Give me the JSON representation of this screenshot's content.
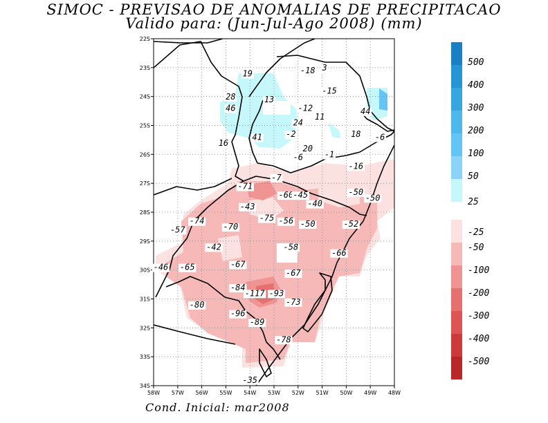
{
  "title_line1": "SIMOC - PREVISAO DE ANOMALIAS DE PRECIPITACAO",
  "title_line2": "Valido para: (Jun-Jul-Ago 2008) (mm)",
  "footer": "Cond. Inicial: mar2008",
  "map": {
    "lat_range": [
      -34,
      -22
    ],
    "lon_range": [
      -58,
      -48
    ],
    "lat_ticks": [
      "22S",
      "23S",
      "24S",
      "25S",
      "26S",
      "27S",
      "28S",
      "29S",
      "30S",
      "31S",
      "32S",
      "33S",
      "34S"
    ],
    "lon_ticks": [
      "58W",
      "57W",
      "56W",
      "55W",
      "54W",
      "53W",
      "52W",
      "51W",
      "50W",
      "49W",
      "48W"
    ],
    "gridlines": "dotted"
  },
  "colorbar": {
    "positive": [
      {
        "label": "500",
        "color": "#1a7fc4"
      },
      {
        "label": "400",
        "color": "#2794d4"
      },
      {
        "label": "300",
        "color": "#36a6df"
      },
      {
        "label": "200",
        "color": "#4cb8ec"
      },
      {
        "label": "100",
        "color": "#64c5f5"
      },
      {
        "label": "50",
        "color": "#8cd3f9"
      },
      {
        "label": "25",
        "color": "#c5f7fb"
      }
    ],
    "negative": [
      {
        "label": "-25",
        "color": "#fce1e1"
      },
      {
        "label": "-50",
        "color": "#f7b8b8"
      },
      {
        "label": "-100",
        "color": "#ef9393"
      },
      {
        "label": "-200",
        "color": "#e67070"
      },
      {
        "label": "-300",
        "color": "#dc5454"
      },
      {
        "label": "-400",
        "color": "#cc3a3a"
      },
      {
        "label": "-500",
        "color": "#b82828"
      }
    ]
  },
  "annotations": [
    {
      "text": "19",
      "lat": -23.3,
      "lon": -54.1
    },
    {
      "text": "-18",
      "lat": -23.2,
      "lon": -51.6
    },
    {
      "text": "3",
      "lat": -23.1,
      "lon": -50.9
    },
    {
      "text": "-15",
      "lat": -23.9,
      "lon": -50.7
    },
    {
      "text": "28",
      "lat": -24.1,
      "lon": -54.8
    },
    {
      "text": "13",
      "lat": -24.2,
      "lon": -53.2
    },
    {
      "text": "46",
      "lat": -24.5,
      "lon": -54.8
    },
    {
      "text": "-12",
      "lat": -24.5,
      "lon": -51.7
    },
    {
      "text": "44",
      "lat": -24.6,
      "lon": -49.2
    },
    {
      "text": "11",
      "lat": -24.8,
      "lon": -51.1
    },
    {
      "text": "24",
      "lat": -25.0,
      "lon": -52.0
    },
    {
      "text": "18",
      "lat": -25.4,
      "lon": -49.6
    },
    {
      "text": "-6",
      "lat": -25.5,
      "lon": -48.6
    },
    {
      "text": "-2",
      "lat": -25.4,
      "lon": -52.3
    },
    {
      "text": "41",
      "lat": -25.5,
      "lon": -53.7
    },
    {
      "text": "16",
      "lat": -25.7,
      "lon": -55.1
    },
    {
      "text": "20",
      "lat": -25.9,
      "lon": -51.6
    },
    {
      "text": "-1",
      "lat": -26.1,
      "lon": -50.7
    },
    {
      "text": "-6",
      "lat": -26.2,
      "lon": -52.0
    },
    {
      "text": "-16",
      "lat": -26.5,
      "lon": -49.6
    },
    {
      "text": "-7",
      "lat": -26.9,
      "lon": -52.9
    },
    {
      "text": "-71",
      "lat": -27.2,
      "lon": -54.2
    },
    {
      "text": "-60",
      "lat": -27.5,
      "lon": -52.5
    },
    {
      "text": "-45",
      "lat": -27.5,
      "lon": -51.9
    },
    {
      "text": "-50",
      "lat": -27.4,
      "lon": -49.6
    },
    {
      "text": "-50",
      "lat": -27.6,
      "lon": -48.9
    },
    {
      "text": "-40",
      "lat": -27.8,
      "lon": -51.3
    },
    {
      "text": "-43",
      "lat": -27.9,
      "lon": -54.1
    },
    {
      "text": "-74",
      "lat": -28.4,
      "lon": -56.2
    },
    {
      "text": "-75",
      "lat": -28.3,
      "lon": -53.3
    },
    {
      "text": "-56",
      "lat": -28.4,
      "lon": -52.5
    },
    {
      "text": "-57",
      "lat": -28.7,
      "lon": -57.0
    },
    {
      "text": "-70",
      "lat": -28.6,
      "lon": -54.8
    },
    {
      "text": "-50",
      "lat": -28.5,
      "lon": -51.6
    },
    {
      "text": "-52",
      "lat": -28.5,
      "lon": -49.8
    },
    {
      "text": "-42",
      "lat": -29.3,
      "lon": -55.5
    },
    {
      "text": "-58",
      "lat": -29.3,
      "lon": -52.3
    },
    {
      "text": "-66",
      "lat": -29.5,
      "lon": -50.3
    },
    {
      "text": "-46",
      "lat": -30.0,
      "lon": -57.7
    },
    {
      "text": "-65",
      "lat": -30.0,
      "lon": -56.6
    },
    {
      "text": "-67",
      "lat": -29.9,
      "lon": -54.5
    },
    {
      "text": "-67",
      "lat": -30.2,
      "lon": -52.2
    },
    {
      "text": "-84",
      "lat": -30.7,
      "lon": -54.5
    },
    {
      "text": "-117",
      "lat": -30.9,
      "lon": -53.8
    },
    {
      "text": "-93",
      "lat": -30.9,
      "lon": -52.9
    },
    {
      "text": "-73",
      "lat": -31.2,
      "lon": -52.2
    },
    {
      "text": "-80",
      "lat": -31.3,
      "lon": -56.2
    },
    {
      "text": "-96",
      "lat": -31.6,
      "lon": -54.5
    },
    {
      "text": "-89",
      "lat": -31.9,
      "lon": -53.7
    },
    {
      "text": "-78",
      "lat": -32.5,
      "lon": -52.6
    },
    {
      "text": "-35",
      "lat": -33.9,
      "lon": -54.0
    }
  ]
}
